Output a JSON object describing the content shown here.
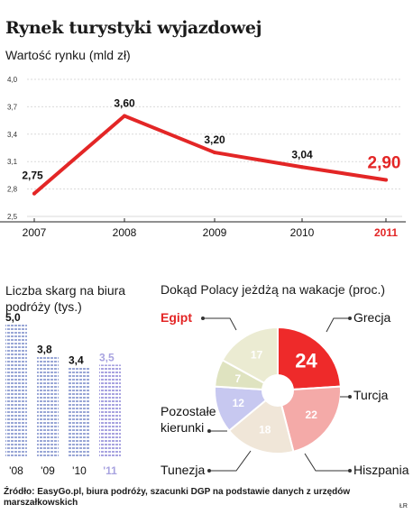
{
  "title": "Rynek turystyki wyjazdowej",
  "colors": {
    "accent": "#e32626",
    "line": "#e32626",
    "bars": "#9aa7d6",
    "bars_last": "#a8a3e0"
  },
  "chart_data": [
    {
      "type": "line",
      "subtitle": "Wartość rynku (mld zł)",
      "x": [
        "2007",
        "2008",
        "2009",
        "2010",
        "2011"
      ],
      "x_highlight": "2011",
      "yticks": [
        "4,0",
        "3,7",
        "3,4",
        "3,1",
        "2,8",
        "2,5"
      ],
      "ylim": [
        2.5,
        4.0
      ],
      "series": [
        {
          "values": [
            2.75,
            3.6,
            3.2,
            3.04,
            2.9
          ],
          "labels": [
            "2,75",
            "3,60",
            "3,20",
            "3,04",
            "2,90"
          ]
        }
      ],
      "grid": true
    },
    {
      "type": "bar",
      "title": "Liczba skarg na biura podróży (tys.)",
      "categories": [
        "'08",
        "'09",
        "'10",
        "'11"
      ],
      "values": [
        5.0,
        3.8,
        3.4,
        3.5
      ],
      "labels": [
        "5,0",
        "3,8",
        "3,4",
        "3,5"
      ]
    },
    {
      "type": "pie",
      "title": "Dokąd Polacy jeżdżą na wakacje (proc.)",
      "slices": [
        {
          "name": "Egipt",
          "value": 24,
          "color": "#ee2a2a"
        },
        {
          "name": "Grecja",
          "value": 22,
          "color": "#f4aaa8"
        },
        {
          "name": "Turcja",
          "value": 18,
          "color": "#f0e6d8"
        },
        {
          "name": "Hiszpania",
          "value": 12,
          "color": "#c7c8f0"
        },
        {
          "name": "Tunezja",
          "value": 7,
          "color": "#dfe3c0"
        },
        {
          "name": "Pozostałe kierunki",
          "value": 17,
          "color": "#ebebd2"
        }
      ]
    }
  ],
  "source": "Źródło: EasyGo.pl, biura podróży, szacunki DGP na podstawie danych z urzędów marszałkowskich",
  "credit": "ŁR"
}
